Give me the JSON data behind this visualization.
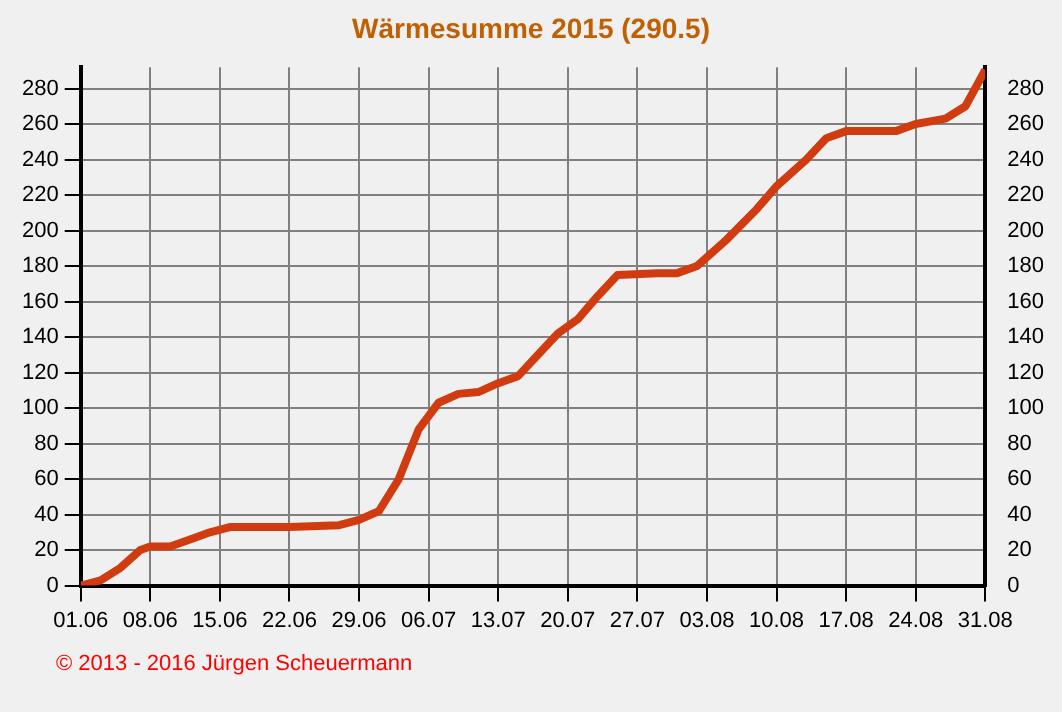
{
  "chart_data": {
    "type": "line",
    "title": "Wärmesumme 2015 (290.5)",
    "x": [
      "--06-01",
      "--06-03",
      "--06-05",
      "--06-07",
      "--06-08",
      "--06-10",
      "--06-12",
      "--06-14",
      "--06-16",
      "--06-22",
      "--06-27",
      "--06-29",
      "--07-01",
      "--07-03",
      "--07-05",
      "--07-07",
      "--07-09",
      "--07-11",
      "--07-13",
      "--07-15",
      "--07-17",
      "--07-19",
      "--07-21",
      "--07-23",
      "--07-25",
      "--07-29",
      "--07-31",
      "--08-02",
      "--08-05",
      "--08-08",
      "--08-10",
      "--08-13",
      "--08-15",
      "--08-17",
      "--08-22",
      "--08-24",
      "--08-27",
      "--08-29",
      "--08-31"
    ],
    "values": [
      0,
      3,
      10,
      20,
      22,
      22,
      26,
      30,
      33,
      33,
      34,
      37,
      42,
      60,
      88,
      103,
      108,
      109,
      114,
      118,
      130,
      142,
      150,
      163,
      175,
      176,
      176,
      180,
      195,
      212,
      225,
      240,
      252,
      256,
      256,
      260,
      263,
      270,
      290.5
    ],
    "color": "#d03c10",
    "xlim": [
      "--06-01",
      "--08-31"
    ],
    "xticks": [
      {
        "value": "--06-01",
        "label": "01.06"
      },
      {
        "value": "--06-08",
        "label": "08.06"
      },
      {
        "value": "--06-15",
        "label": "15.06"
      },
      {
        "value": "--06-22",
        "label": "22.06"
      },
      {
        "value": "--06-29",
        "label": "29.06"
      },
      {
        "value": "--07-06",
        "label": "06.07"
      },
      {
        "value": "--07-13",
        "label": "13.07"
      },
      {
        "value": "--07-20",
        "label": "20.07"
      },
      {
        "value": "--07-27",
        "label": "27.07"
      },
      {
        "value": "--08-03",
        "label": "03.08"
      },
      {
        "value": "--08-10",
        "label": "10.08"
      },
      {
        "value": "--08-17",
        "label": "17.08"
      },
      {
        "value": "--08-24",
        "label": "24.08"
      },
      {
        "value": "--08-31",
        "label": "31.08"
      }
    ],
    "ylim": [
      0,
      292
    ],
    "yticks": [
      0,
      20,
      40,
      60,
      80,
      100,
      120,
      140,
      160,
      180,
      200,
      220,
      240,
      260,
      280
    ],
    "y2lim": [
      0,
      292
    ],
    "y2ticks": [
      0,
      20,
      40,
      60,
      80,
      100,
      120,
      140,
      160,
      180,
      200,
      220,
      240,
      260,
      280
    ],
    "grid": true,
    "legend": false,
    "annotations": [
      "© 2013 - 2016 Jürgen Scheuermann"
    ]
  }
}
